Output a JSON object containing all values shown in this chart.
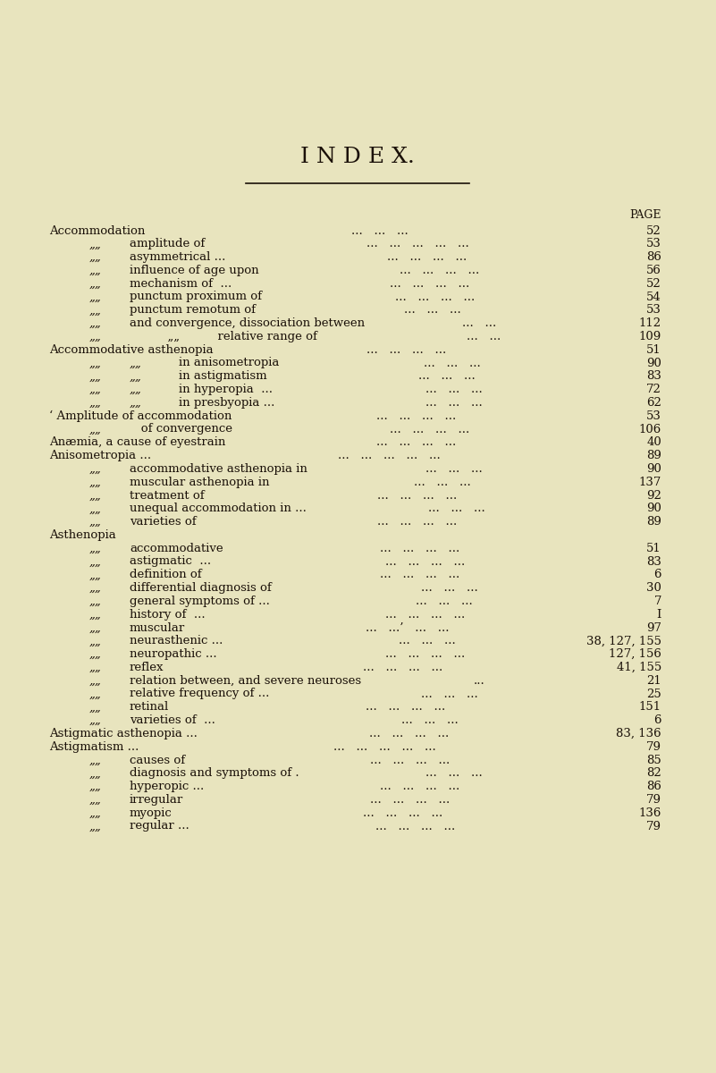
{
  "bg_color": "#e8e4be",
  "text_color": "#1a1008",
  "title": "I N D E X.",
  "title_fontsize": 18,
  "page_label": "PAGE",
  "font_size": 9.5,
  "entries": [
    {
      "level": 0,
      "left": "Accommodation",
      "mid": "...   ...   ...",
      "page": "52"
    },
    {
      "level": 1,
      "prefix": "„„",
      "left": "amplitude of",
      "mid": "...   ...   ...   ...   ...",
      "page": "53"
    },
    {
      "level": 1,
      "prefix": "„„",
      "left": "asymmetrical ...",
      "mid": "...   ...   ...   ...",
      "page": "86"
    },
    {
      "level": 1,
      "prefix": "„„",
      "left": "influence of age upon",
      "mid": "...   ...   ...   ...",
      "page": "56"
    },
    {
      "level": 1,
      "prefix": "„„",
      "left": "mechanism of  ...",
      "mid": "...   ...   ...   ...",
      "page": "52"
    },
    {
      "level": 1,
      "prefix": "„„",
      "left": "punctum proximum of",
      "mid": "...   ...   ...   ...",
      "page": "54"
    },
    {
      "level": 1,
      "prefix": "„„",
      "left": "punctum remotum of",
      "mid": "...   ...   ...",
      "page": "53"
    },
    {
      "level": 1,
      "prefix": "„„",
      "left": "and convergence, dissociation between",
      "mid": "...   ...",
      "page": "112"
    },
    {
      "level": 1,
      "prefix": "„„",
      "left": "          „„          relative range of",
      "mid": "...   ...",
      "page": "109"
    },
    {
      "level": 0,
      "left": "Accommodative asthenopia",
      "mid": "...   ...   ...   ...",
      "page": "51"
    },
    {
      "level": 2,
      "prefix": "„„",
      "prefix2": "„„",
      "left": "in anisometropia",
      "mid": "...   ...   ...",
      "page": "90"
    },
    {
      "level": 2,
      "prefix": "„„",
      "prefix2": "„„",
      "left": "in astigmatism",
      "mid": "...   ...   ...",
      "page": "83"
    },
    {
      "level": 2,
      "prefix": "„„",
      "prefix2": "„„",
      "left": "in hyperopia  ...",
      "mid": "...   ...   ...",
      "page": "72"
    },
    {
      "level": 2,
      "prefix": "„„",
      "prefix2": "„„",
      "left": "in presbyopia ...",
      "mid": "...   ...   ...",
      "page": "62"
    },
    {
      "level": 0,
      "left": "‘ Amplitude of accommodation",
      "mid": "...   ...   ...   ...",
      "page": "53"
    },
    {
      "level": 1,
      "prefix": "„„",
      "left": "   of convergence",
      "mid": "...   ...   ...   ...",
      "page": "106"
    },
    {
      "level": 0,
      "left": "Anæmia, a cause of eyestrain",
      "mid": "...   ...   ...   ...",
      "page": "40"
    },
    {
      "level": 0,
      "left": "Anisometropia ...",
      "mid": "...   ...   ...   ...   ...",
      "page": "89"
    },
    {
      "level": 1,
      "prefix": "„„",
      "left": "accommodative asthenopia in",
      "mid": "...   ...   ...",
      "page": "90"
    },
    {
      "level": 1,
      "prefix": "„„",
      "left": "muscular asthenopia in",
      "mid": "...   ...   ...",
      "page": "137"
    },
    {
      "level": 1,
      "prefix": "„„",
      "left": "treatment of",
      "mid": "...   ...   ...   ...",
      "page": "92"
    },
    {
      "level": 1,
      "prefix": "„„",
      "left": "unequal accommodation in ...",
      "mid": "...   ...   ...",
      "page": "90"
    },
    {
      "level": 1,
      "prefix": "„„",
      "left": "varieties of",
      "mid": "...   ...   ...   ...",
      "page": "89"
    },
    {
      "level": 0,
      "left": "Asthenopia",
      "mid": "...   ...   ...   ...   ...",
      "page": ""
    },
    {
      "level": 1,
      "prefix": "„„",
      "left": "accommodative",
      "mid": "...   ...   ...   ...",
      "page": "51"
    },
    {
      "level": 1,
      "prefix": "„„",
      "left": "astigmatic  ...",
      "mid": "...   ...   ...   ...",
      "page": "83"
    },
    {
      "level": 1,
      "prefix": "„„",
      "left": "definition of",
      "mid": "...   ...   ...   ...",
      "page": "6"
    },
    {
      "level": 1,
      "prefix": "„„",
      "left": "differential diagnosis of",
      "mid": "...   ...   ...",
      "page": "30"
    },
    {
      "level": 1,
      "prefix": "„„",
      "left": "general symptoms of ...",
      "mid": "...   ...   ...",
      "page": "7"
    },
    {
      "level": 1,
      "prefix": "„„",
      "left": "history of  ...",
      "mid": "...   ...   ...   ...",
      "page": "I"
    },
    {
      "level": 1,
      "prefix": "„„",
      "left": "muscular",
      "mid": "...   ...’   ...   ...",
      "page": "97"
    },
    {
      "level": 1,
      "prefix": "„„",
      "left": "neurasthenic ...",
      "mid": "...   ...   ...",
      "page": "38, 127, 155"
    },
    {
      "level": 1,
      "prefix": "„„",
      "left": "neuropathic ...",
      "mid": "...   ...   ...   ...",
      "page": "127, 156"
    },
    {
      "level": 1,
      "prefix": "„„",
      "left": "reflex",
      "mid": "...   ...   ...   ...",
      "page": "41, 155"
    },
    {
      "level": 1,
      "prefix": "„„",
      "left": "relation between, and severe neuroses",
      "mid": "...",
      "page": "21"
    },
    {
      "level": 1,
      "prefix": "„„",
      "left": "relative frequency of ...",
      "mid": "...   ...   ...",
      "page": "25"
    },
    {
      "level": 1,
      "prefix": "„„",
      "left": "retinal",
      "mid": "...   ...   ...   ...",
      "page": "151"
    },
    {
      "level": 1,
      "prefix": "„„",
      "left": "varieties of  ...",
      "mid": "...   ...   ...",
      "page": "6"
    },
    {
      "level": 0,
      "left": "Astigmatic asthenopia ...",
      "mid": "...   ...   ...   ...",
      "page": "83, 136"
    },
    {
      "level": 0,
      "left": "Astigmatism ...",
      "mid": "...   ...   ...   ...   ...",
      "page": "79"
    },
    {
      "level": 1,
      "prefix": "„„",
      "left": "causes of",
      "mid": "...   ...   ...   ...",
      "page": "85"
    },
    {
      "level": 1,
      "prefix": "„„",
      "left": "diagnosis and symptoms of .",
      "mid": "...   ...   ...",
      "page": "82"
    },
    {
      "level": 1,
      "prefix": "„„",
      "left": "hyperopic ...",
      "mid": "...   ...   ...   ...",
      "page": "86"
    },
    {
      "level": 1,
      "prefix": "„„",
      "left": "irregular",
      "mid": "...   ...   ...   ...",
      "page": "79"
    },
    {
      "level": 1,
      "prefix": "„„",
      "left": "myopic",
      "mid": "...   ...   ...   ...",
      "page": "136"
    },
    {
      "level": 1,
      "prefix": "„„",
      "left": "regular ...",
      "mid": "...   ...   ...   ...",
      "page": "79"
    }
  ]
}
